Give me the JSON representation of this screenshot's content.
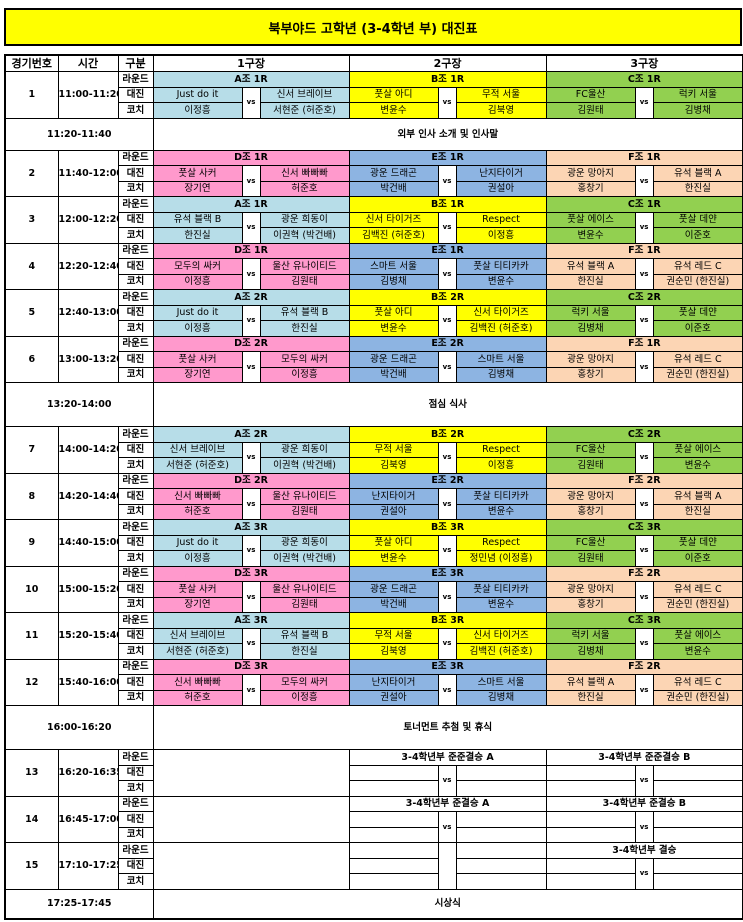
{
  "title": "북부야드 고학년 (3-4학년 부) 대진표",
  "header": {
    "no": "경기번호",
    "time": "시간",
    "type": "구분",
    "fields": [
      "1구장",
      "2구장",
      "3구장"
    ]
  },
  "row_labels": {
    "round": "라운드",
    "match": "대진",
    "coach": "코치"
  },
  "vs_label": "vs",
  "group_colors": {
    "A": "#b7dde8",
    "B": "#ffff00",
    "C": "#92d050",
    "D": "#ff99cc",
    "E": "#8db4e2",
    "F": "#fcd5b4"
  },
  "schedule": [
    {
      "type": "match",
      "no": "1",
      "time": "11:00-11:20",
      "fields": [
        {
          "group": "A",
          "round": "A조 1R",
          "team1": "Just do it",
          "team2": "신서 브레이브",
          "coach1": "이정흥",
          "coach2": "서현준 (허준호)"
        },
        {
          "group": "B",
          "round": "B조 1R",
          "team1": "풋살 아디",
          "team2": "무적 서울",
          "coach1": "변윤수",
          "coach2": "김북영"
        },
        {
          "group": "C",
          "round": "C조 1R",
          "team1": "FC울산",
          "team2": "럭키 서울",
          "coach1": "김원태",
          "coach2": "김병채"
        }
      ]
    },
    {
      "type": "break",
      "time": "11:20-11:40",
      "label": "외부 인사 소개 및 인사말"
    },
    {
      "type": "match",
      "no": "2",
      "time": "11:40-12:00",
      "fields": [
        {
          "group": "D",
          "round": "D조 1R",
          "team1": "풋살 사커",
          "team2": "신서 빠빠빠",
          "coach1": "장기연",
          "coach2": "허준호"
        },
        {
          "group": "E",
          "round": "E조 1R",
          "team1": "광운 드래곤",
          "team2": "난지타이거",
          "coach1": "박건배",
          "coach2": "권설아"
        },
        {
          "group": "F",
          "round": "F조 1R",
          "team1": "광운 망아지",
          "team2": "유석 블랙 A",
          "coach1": "홍창기",
          "coach2": "한진실"
        }
      ]
    },
    {
      "type": "match",
      "no": "3",
      "time": "12:00-12:20",
      "fields": [
        {
          "group": "A",
          "round": "A조 1R",
          "team1": "유석 블랙 B",
          "team2": "광운 희동이",
          "coach1": "한진실",
          "coach2": "이권혁 (박건배)"
        },
        {
          "group": "B",
          "round": "B조 1R",
          "team1": "신서 타이거즈",
          "team2": "Respect",
          "coach1": "김백진 (허준호)",
          "coach2": "이정흥"
        },
        {
          "group": "C",
          "round": "C조 1R",
          "team1": "풋살 에이스",
          "team2": "풋살 데얀",
          "coach1": "변윤수",
          "coach2": "이준호"
        }
      ]
    },
    {
      "type": "match",
      "no": "4",
      "time": "12:20-12:40",
      "fields": [
        {
          "group": "D",
          "round": "D조 1R",
          "team1": "모두의 싸커",
          "team2": "울산 유나이티드",
          "coach1": "이정흥",
          "coach2": "김원태"
        },
        {
          "group": "E",
          "round": "E조 1R",
          "team1": "스마트 서울",
          "team2": "풋살 티티카카",
          "coach1": "김병채",
          "coach2": "변윤수"
        },
        {
          "group": "F",
          "round": "F조 1R",
          "team1": "유석 블랙 A",
          "team2": "유석 레드 C",
          "coach1": "한진실",
          "coach2": "권순민 (한진실)"
        }
      ]
    },
    {
      "type": "match",
      "no": "5",
      "time": "12:40-13:00",
      "fields": [
        {
          "group": "A",
          "round": "A조 2R",
          "team1": "Just do it",
          "team2": "유석 블랙 B",
          "coach1": "이정흥",
          "coach2": "한진실"
        },
        {
          "group": "B",
          "round": "B조 2R",
          "team1": "풋살 아디",
          "team2": "신서 타이거즈",
          "coach1": "변윤수",
          "coach2": "김백진 (허준호)"
        },
        {
          "group": "C",
          "round": "C조 2R",
          "team1": "럭키 서울",
          "team2": "풋살 데얀",
          "coach1": "김병채",
          "coach2": "이준호"
        }
      ]
    },
    {
      "type": "match",
      "no": "6",
      "time": "13:00-13:20",
      "fields": [
        {
          "group": "D",
          "round": "D조 2R",
          "team1": "풋살 사커",
          "team2": "모두의 싸커",
          "coach1": "장기연",
          "coach2": "이정흥"
        },
        {
          "group": "E",
          "round": "E조 2R",
          "team1": "광운 드래곤",
          "team2": "스마트 서울",
          "coach1": "박건배",
          "coach2": "김병채"
        },
        {
          "group": "F",
          "round": "F조 1R",
          "team1": "광운 망아지",
          "team2": "유석 레드 C",
          "coach1": "홍창기",
          "coach2": "권순민 (한진실)"
        }
      ]
    },
    {
      "type": "break",
      "time": "13:20-14:00",
      "label": "점심 식사"
    },
    {
      "type": "match",
      "no": "7",
      "time": "14:00-14:20",
      "fields": [
        {
          "group": "A",
          "round": "A조 2R",
          "team1": "신서 브레이브",
          "team2": "광운 희동이",
          "coach1": "서현준 (허준호)",
          "coach2": "이권혁 (박건배)"
        },
        {
          "group": "B",
          "round": "B조 2R",
          "team1": "무적 서울",
          "team2": "Respect",
          "coach1": "김북영",
          "coach2": "이정흥"
        },
        {
          "group": "C",
          "round": "C조 2R",
          "team1": "FC울산",
          "team2": "풋살 에이스",
          "coach1": "김원태",
          "coach2": "변윤수"
        }
      ]
    },
    {
      "type": "match",
      "no": "8",
      "time": "14:20-14:40",
      "fields": [
        {
          "group": "D",
          "round": "D조 2R",
          "team1": "신서 빠빠빠",
          "team2": "울산 유나이티드",
          "coach1": "허준호",
          "coach2": "김원태"
        },
        {
          "group": "E",
          "round": "E조 2R",
          "team1": "난지타이거",
          "team2": "풋살 티티카카",
          "coach1": "권설아",
          "coach2": "변윤수"
        },
        {
          "group": "F",
          "round": "F조 2R",
          "team1": "광운 망아지",
          "team2": "유석 블랙 A",
          "coach1": "홍창기",
          "coach2": "한진실"
        }
      ]
    },
    {
      "type": "match",
      "no": "9",
      "time": "14:40-15:00",
      "fields": [
        {
          "group": "A",
          "round": "A조 3R",
          "team1": "Just do it",
          "team2": "광운 희동이",
          "coach1": "이정흥",
          "coach2": "이권혁 (박건배)"
        },
        {
          "group": "B",
          "round": "B조 3R",
          "team1": "풋살 아디",
          "team2": "Respect",
          "coach1": "변윤수",
          "coach2": "정민념 (이정흥)"
        },
        {
          "group": "C",
          "round": "C조 3R",
          "team1": "FC울산",
          "team2": "풋살 데얀",
          "coach1": "김원태",
          "coach2": "이준호"
        }
      ]
    },
    {
      "type": "match",
      "no": "10",
      "time": "15:00-15:20",
      "fields": [
        {
          "group": "D",
          "round": "D조 3R",
          "team1": "풋살 사커",
          "team2": "울산 유나이티드",
          "coach1": "장기연",
          "coach2": "김원태"
        },
        {
          "group": "E",
          "round": "E조 3R",
          "team1": "광운 드래곤",
          "team2": "풋살 티티카카",
          "coach1": "박건배",
          "coach2": "변윤수"
        },
        {
          "group": "F",
          "round": "F조 2R",
          "team1": "광운 망아지",
          "team2": "유석 레드 C",
          "coach1": "홍창기",
          "coach2": "권순민 (한진실)"
        }
      ]
    },
    {
      "type": "match",
      "no": "11",
      "time": "15:20-15:40",
      "fields": [
        {
          "group": "A",
          "round": "A조 3R",
          "team1": "신서 브레이브",
          "team2": "유석 블랙 B",
          "coach1": "서현준 (허준호)",
          "coach2": "한진실"
        },
        {
          "group": "B",
          "round": "B조 3R",
          "team1": "무적 서울",
          "team2": "신서 타이거즈",
          "coach1": "김북영",
          "coach2": "김백진 (허준호)"
        },
        {
          "group": "C",
          "round": "C조 3R",
          "team1": "럭키 서울",
          "team2": "풋살 에이스",
          "coach1": "김병채",
          "coach2": "변윤수"
        }
      ]
    },
    {
      "type": "match",
      "no": "12",
      "time": "15:40-16:00",
      "fields": [
        {
          "group": "D",
          "round": "D조 3R",
          "team1": "신서 빠빠빠",
          "team2": "모두의 싸커",
          "coach1": "허준호",
          "coach2": "이정흥"
        },
        {
          "group": "E",
          "round": "E조 3R",
          "team1": "난지타이거",
          "team2": "스마트 서울",
          "coach1": "권설아",
          "coach2": "김병채"
        },
        {
          "group": "F",
          "round": "F조 2R",
          "team1": "유석 블랙 A",
          "team2": "유석 레드 C",
          "coach1": "한진실",
          "coach2": "권순민 (한진실)"
        }
      ]
    },
    {
      "type": "break",
      "time": "16:00-16:20",
      "label": "토너먼트 추첨 및 휴식"
    },
    {
      "type": "match",
      "no": "13",
      "time": "16:20-16:35",
      "fields": [
        null,
        {
          "group": "",
          "round": "3-4학년부 준준결승 A",
          "team1": "",
          "team2": "",
          "coach1": "",
          "coach2": ""
        },
        {
          "group": "",
          "round": "3-4학년부 준준결승 B",
          "team1": "",
          "team2": "",
          "coach1": "",
          "coach2": ""
        }
      ]
    },
    {
      "type": "match",
      "no": "14",
      "time": "16:45-17:00",
      "fields": [
        null,
        {
          "group": "",
          "round": "3-4학년부 준결승 A",
          "team1": "",
          "team2": "",
          "coach1": "",
          "coach2": ""
        },
        {
          "group": "",
          "round": "3-4학년부 준결승 B",
          "team1": "",
          "team2": "",
          "coach1": "",
          "coach2": ""
        }
      ]
    },
    {
      "type": "match",
      "no": "15",
      "time": "17:10-17:25",
      "fields": [
        null,
        {
          "group": "",
          "round": "",
          "team1": "",
          "team2": "",
          "coach1": "",
          "coach2": "",
          "no_vs": true
        },
        {
          "group": "",
          "round": "3-4학년부 결승",
          "team1": "",
          "team2": "",
          "coach1": "",
          "coach2": ""
        }
      ]
    },
    {
      "type": "break",
      "time": "17:25-17:45",
      "label": "시상식"
    }
  ]
}
